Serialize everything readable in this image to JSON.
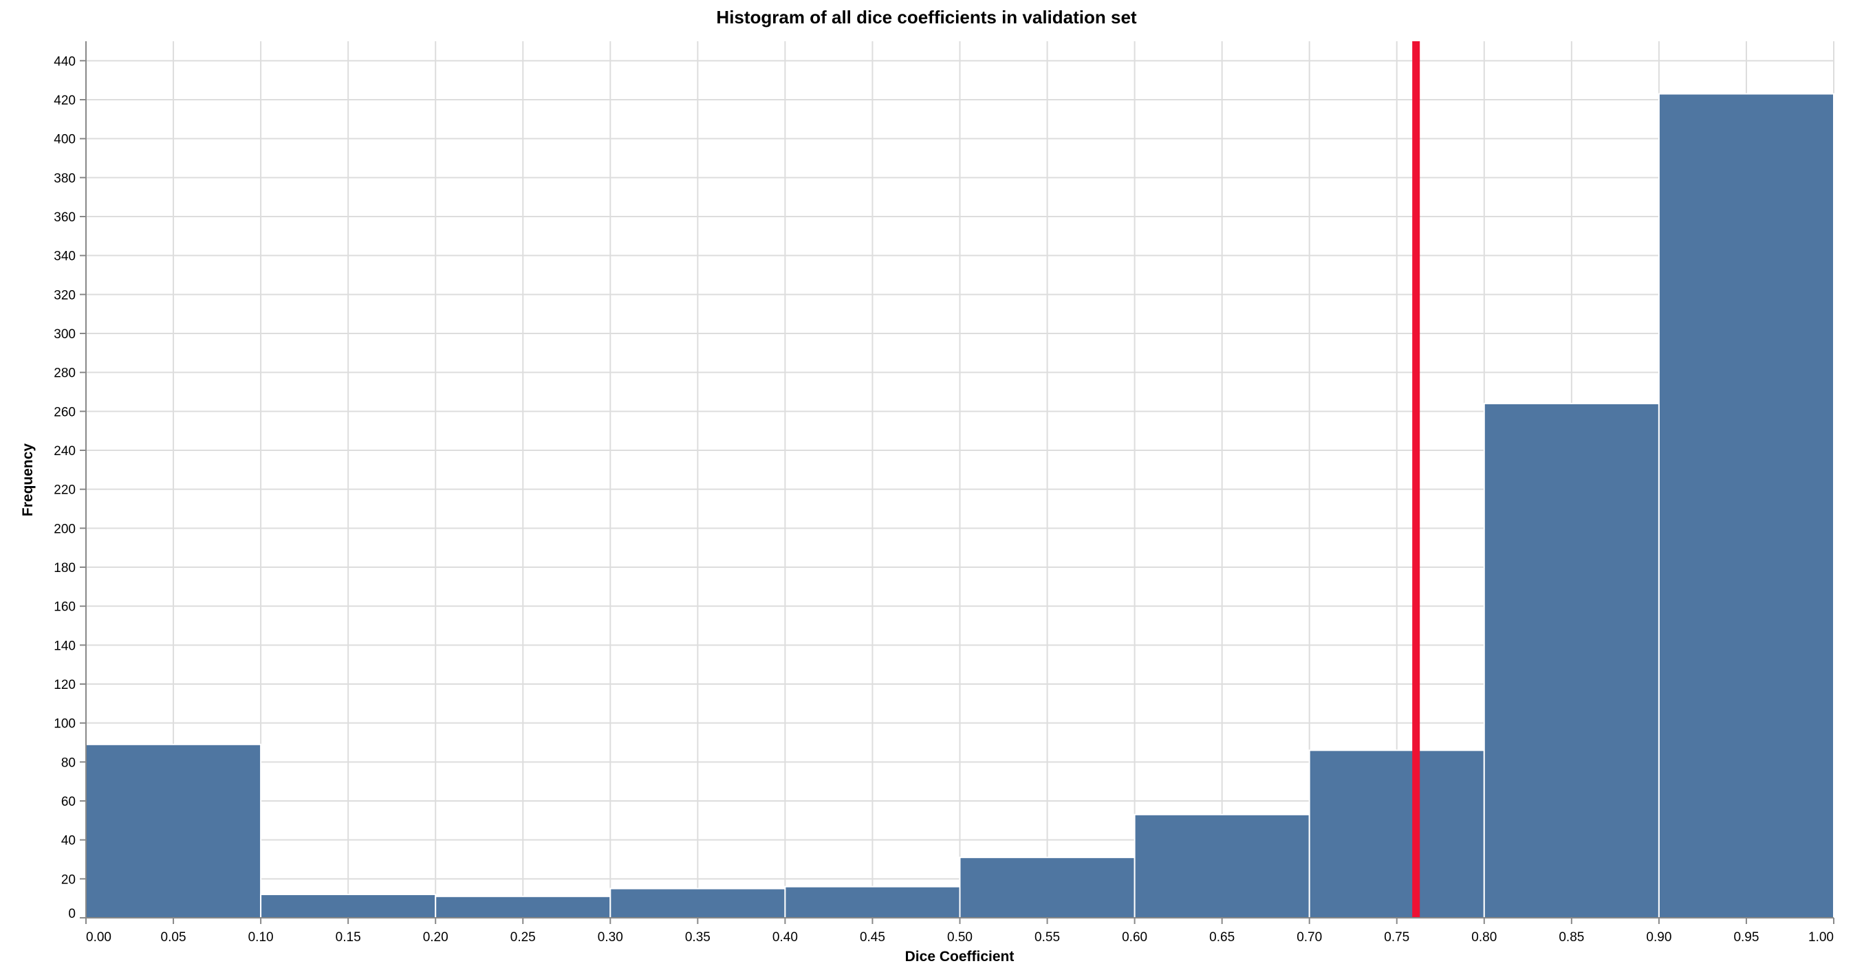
{
  "chart_data": {
    "type": "bar",
    "title": "Histogram of all dice coefficients in validation set",
    "xlabel": "Dice Coefficient",
    "ylabel": "Frequency",
    "bins": [
      {
        "start": 0.0,
        "end": 0.1,
        "count": 89
      },
      {
        "start": 0.1,
        "end": 0.2,
        "count": 12
      },
      {
        "start": 0.2,
        "end": 0.3,
        "count": 11
      },
      {
        "start": 0.3,
        "end": 0.4,
        "count": 15
      },
      {
        "start": 0.4,
        "end": 0.5,
        "count": 16
      },
      {
        "start": 0.5,
        "end": 0.6,
        "count": 31
      },
      {
        "start": 0.6,
        "end": 0.7,
        "count": 53
      },
      {
        "start": 0.7,
        "end": 0.8,
        "count": 86
      },
      {
        "start": 0.8,
        "end": 0.9,
        "count": 264
      },
      {
        "start": 0.9,
        "end": 1.0,
        "count": 423
      }
    ],
    "mean_rule": 0.761,
    "xlim": [
      0,
      1
    ],
    "ylim": [
      0,
      450
    ],
    "x_ticks": [
      "0.00",
      "0.05",
      "0.10",
      "0.15",
      "0.20",
      "0.25",
      "0.30",
      "0.35",
      "0.40",
      "0.45",
      "0.50",
      "0.55",
      "0.60",
      "0.65",
      "0.70",
      "0.75",
      "0.80",
      "0.85",
      "0.90",
      "0.95",
      "1.00"
    ],
    "y_ticks": [
      0,
      20,
      40,
      60,
      80,
      100,
      120,
      140,
      160,
      180,
      200,
      220,
      240,
      260,
      280,
      300,
      320,
      340,
      360,
      380,
      400,
      420,
      440
    ],
    "grid": true,
    "colors": {
      "bar": "#4f76a1",
      "rule": "#ee1133",
      "grid": "#dddddd",
      "axis": "#888888"
    }
  }
}
